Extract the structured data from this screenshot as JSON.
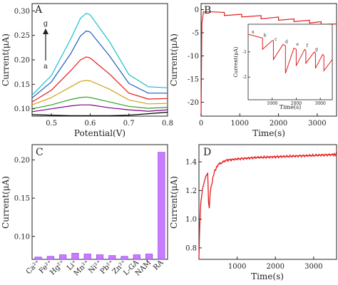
{
  "panels": {
    "A": {
      "label": "A",
      "xlabel": "Potential(V)",
      "ylabel": "Current(μA)",
      "xticks": [
        "0.5",
        "0.6",
        "0.7",
        "0.8"
      ],
      "yticks": [
        "0.10",
        "0.15",
        "0.20",
        "0.25",
        "0.30"
      ],
      "arrow_top": "g",
      "arrow_bottom": "a"
    },
    "B": {
      "label": "B",
      "xlabel": "Time(s)",
      "ylabel": "Current(μA)",
      "xticks": [
        "0",
        "1000",
        "2000",
        "3000"
      ],
      "yticks": [
        "0",
        "-5",
        "-10",
        "-15",
        "-20"
      ],
      "inset": {
        "xlabel": "Time(s)",
        "ylabel": "Current(μA)",
        "xticks": [
          "1000",
          "2000",
          "3000"
        ],
        "yticks": [
          "-1",
          "-2"
        ],
        "letters": [
          "a",
          "b",
          "c",
          "d",
          "e",
          "f",
          "g"
        ]
      }
    },
    "C": {
      "label": "C",
      "ylabel": "Current(μA)",
      "yticks": [
        "0.10",
        "0.15",
        "0.20"
      ]
    },
    "D": {
      "label": "D",
      "xlabel": "Time(s)",
      "ylabel": "Current(μA)",
      "xticks": [
        "1000",
        "2000",
        "3000"
      ],
      "yticks": [
        "0.8",
        "1.0",
        "1.2",
        "1.4"
      ]
    }
  },
  "chart_data": [
    {
      "type": "line",
      "panel": "A",
      "xlim": [
        0.45,
        0.8
      ],
      "ylim": [
        0.085,
        0.315
      ],
      "x": [
        0.45,
        0.5,
        0.55,
        0.575,
        0.59,
        0.6,
        0.65,
        0.7,
        0.75,
        0.8
      ],
      "series": [
        {
          "color": "#000000",
          "values": [
            0.088,
            0.087,
            0.086,
            0.086,
            0.086,
            0.086,
            0.086,
            0.087,
            0.09,
            0.093
          ]
        },
        {
          "color": "#800080",
          "values": [
            0.094,
            0.1,
            0.106,
            0.108,
            0.108,
            0.108,
            0.102,
            0.098,
            0.095,
            0.098
          ]
        },
        {
          "color": "#2ca02c",
          "values": [
            0.1,
            0.108,
            0.119,
            0.123,
            0.124,
            0.123,
            0.114,
            0.105,
            0.101,
            0.103
          ]
        },
        {
          "color": "#d4a017",
          "values": [
            0.108,
            0.123,
            0.145,
            0.156,
            0.158,
            0.157,
            0.14,
            0.118,
            0.11,
            0.111
          ]
        },
        {
          "color": "#e41a1c",
          "values": [
            0.114,
            0.138,
            0.178,
            0.2,
            0.206,
            0.204,
            0.171,
            0.132,
            0.12,
            0.121
          ]
        },
        {
          "color": "#1f5fbf",
          "values": [
            0.122,
            0.155,
            0.213,
            0.249,
            0.259,
            0.257,
            0.208,
            0.152,
            0.132,
            0.132
          ]
        },
        {
          "color": "#17becf",
          "values": [
            0.128,
            0.168,
            0.243,
            0.285,
            0.295,
            0.292,
            0.237,
            0.17,
            0.145,
            0.143
          ]
        }
      ]
    },
    {
      "type": "line",
      "panel": "B",
      "xlim": [
        0,
        3500
      ],
      "ylim": [
        -23,
        1.3
      ],
      "x": [
        0,
        20,
        60,
        300,
        600,
        600,
        1050,
        1050,
        1550,
        1550,
        2000,
        2000,
        2400,
        2400,
        2800,
        2800,
        3100,
        3100,
        3500
      ],
      "values": [
        -23,
        -3,
        -0.5,
        -0.5,
        -0.6,
        -1.3,
        -1.0,
        -1.6,
        -1.3,
        -2.0,
        -1.6,
        -2.3,
        -2.0,
        -2.6,
        -2.3,
        -2.9,
        -2.6,
        -3.2,
        -3.1
      ],
      "color": "#e41a1c"
    },
    {
      "type": "line",
      "panel": "B-inset",
      "xlim": [
        0,
        3500
      ],
      "ylim": [
        -2.9,
        0.1
      ],
      "x": [
        0,
        600,
        600,
        1000,
        1050,
        1050,
        1450,
        1550,
        1550,
        1900,
        2000,
        2000,
        2350,
        2400,
        2400,
        2750,
        2800,
        2800,
        3100,
        3150,
        3150,
        3500
      ],
      "values": [
        -0.3,
        -0.45,
        -0.9,
        -0.55,
        -0.55,
        -1.3,
        -0.7,
        -0.75,
        -1.85,
        -0.85,
        -0.9,
        -1.55,
        -0.9,
        -0.95,
        -1.45,
        -1.0,
        -1.05,
        -1.65,
        -1.1,
        -1.15,
        -1.75,
        -1.3
      ],
      "color": "#e41a1c"
    },
    {
      "type": "bar",
      "panel": "C",
      "categories": [
        "Ca²⁺",
        "Fe²⁺",
        "Hg²⁺",
        "Li⁺",
        "Mn²⁺",
        "Ni²⁺",
        "Pb²⁺",
        "Zn²⁺",
        "L-GA",
        "NAM",
        "RA"
      ],
      "values": [
        0.073,
        0.074,
        0.076,
        0.078,
        0.077,
        0.076,
        0.075,
        0.074,
        0.076,
        0.077,
        0.21
      ],
      "ylim": [
        0.07,
        0.22
      ],
      "color": "#c77dff"
    },
    {
      "type": "line",
      "panel": "D",
      "xlim": [
        0,
        3600
      ],
      "ylim": [
        0.72,
        1.52
      ],
      "x": [
        0,
        20,
        50,
        100,
        180,
        230,
        250,
        270,
        300,
        400,
        500,
        700,
        1000,
        1500,
        2000,
        2500,
        3000,
        3500,
        3600
      ],
      "values": [
        0.72,
        0.95,
        1.12,
        1.22,
        1.3,
        1.32,
        1.12,
        1.08,
        1.2,
        1.33,
        1.38,
        1.41,
        1.42,
        1.43,
        1.435,
        1.44,
        1.445,
        1.45,
        1.45
      ],
      "color": "#e41a1c"
    }
  ]
}
